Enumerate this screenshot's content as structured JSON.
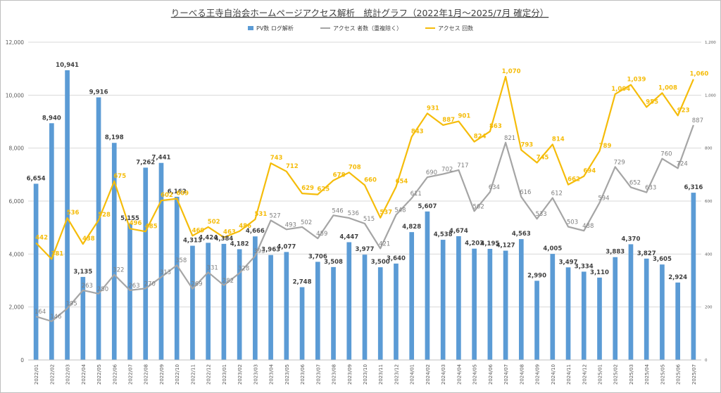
{
  "chart_data": {
    "type": "bar",
    "title": "りーべる王寺自治会ホームページアクセス解析　統計グラフ（2022年1月～2025/7月 確定分）",
    "categories": [
      "2022/01",
      "2022/02",
      "2022/03",
      "2022/04",
      "2022/05",
      "2022/06",
      "2022/07",
      "2022/08",
      "2022/09",
      "2022/10",
      "2022/11",
      "2022/12",
      "2023/01",
      "2023/02",
      "2023/03",
      "2023/04",
      "2023/05",
      "2023/06",
      "2023/07",
      "2023/08",
      "2023/09",
      "2023/10",
      "2023/11",
      "2023/12",
      "2024/01",
      "2024/02",
      "2024/03",
      "2024/04",
      "2024/05",
      "2024/06",
      "2024/07",
      "2024/08",
      "2024/09",
      "2024/10",
      "2024/11",
      "2024/12",
      "2025/01",
      "2025/02",
      "2025/03",
      "2025/04",
      "2025/05",
      "2025/06",
      "2025/07"
    ],
    "series": [
      {
        "name": "PV数 ログ解析",
        "type": "bar",
        "axis": "left",
        "color": "#5b9bd5",
        "values": [
          6654,
          8940,
          10941,
          3135,
          9916,
          8198,
          5155,
          7262,
          7441,
          6162,
          4313,
          4424,
          4384,
          4182,
          4666,
          3963,
          4077,
          2748,
          3706,
          3508,
          4447,
          3977,
          3500,
          3640,
          4828,
          5607,
          4538,
          4674,
          4203,
          4195,
          4127,
          4563,
          2990,
          4005,
          3497,
          3334,
          3110,
          3883,
          4370,
          3827,
          3605,
          2924,
          6316
        ],
        "labels": [
          "6,654",
          "8,940",
          "10,941",
          "3,135",
          "9,916",
          "8,198",
          "5,155",
          "7,262",
          "7,441",
          "6,162",
          "4,313",
          "4,424",
          "4,384",
          "4,182",
          "4,666",
          "3,963",
          "4,077",
          "2,748",
          "3,706",
          "3,508",
          "4,447",
          "3,977",
          "3,500",
          "3,640",
          "4,828",
          "5,607",
          "4,538",
          "4,674",
          "4,203",
          "4,195",
          "4,127",
          "4,563",
          "2,990",
          "4,005",
          "3,497",
          "3,334",
          "3,110",
          "3,883",
          "4,370",
          "3,827",
          "3,605",
          "2,924",
          "6,316"
        ]
      },
      {
        "name": "アクセス 者数（重複除く）",
        "type": "line",
        "axis": "right",
        "color": "#a5a5a5",
        "values": [
          164,
          146,
          195,
          263,
          250,
          322,
          263,
          270,
          313,
          358,
          269,
          331,
          282,
          328,
          393,
          527,
          493,
          502,
          459,
          546,
          536,
          515,
          421,
          548,
          611,
          690,
          702,
          717,
          562,
          634,
          821,
          616,
          533,
          612,
          503,
          488,
          594,
          729,
          652,
          633,
          760,
          724,
          887
        ]
      },
      {
        "name": "アクセス 回数",
        "type": "line",
        "axis": "right",
        "color": "#f5bc0a",
        "values": [
          442,
          381,
          536,
          438,
          528,
          675,
          496,
          485,
          602,
          609,
          469,
          502,
          463,
          486,
          531,
          743,
          712,
          629,
          625,
          678,
          708,
          660,
          537,
          654,
          843,
          931,
          887,
          901,
          824,
          863,
          1070,
          793,
          745,
          814,
          662,
          694,
          789,
          1004,
          1039,
          955,
          1008,
          923,
          1060
        ],
        "labels": [
          "442",
          "381",
          "536",
          "438",
          "528",
          "675",
          "496",
          "485",
          "602",
          "609",
          "469",
          "502",
          "463",
          "486",
          "531",
          "743",
          "712",
          "629",
          "625",
          "678",
          "708",
          "660",
          "537",
          "654",
          "843",
          "931",
          "887",
          "901",
          "824",
          "863",
          "1,070",
          "793",
          "745",
          "814",
          "662",
          "694",
          "789",
          "1,004",
          "1,039",
          "955",
          "1,008",
          "923",
          "1,060"
        ]
      }
    ],
    "y_left": {
      "min": 0,
      "max": 12000,
      "ticks": [
        "0",
        "2,000",
        "4,000",
        "6,000",
        "8,000",
        "10,000",
        "12,000"
      ]
    },
    "y_right": {
      "min": 0,
      "max": 1200,
      "ticks": [
        "0",
        "200",
        "400",
        "600",
        "800",
        "1,000",
        "1,200"
      ]
    },
    "grid": true,
    "legend_position": "top"
  }
}
